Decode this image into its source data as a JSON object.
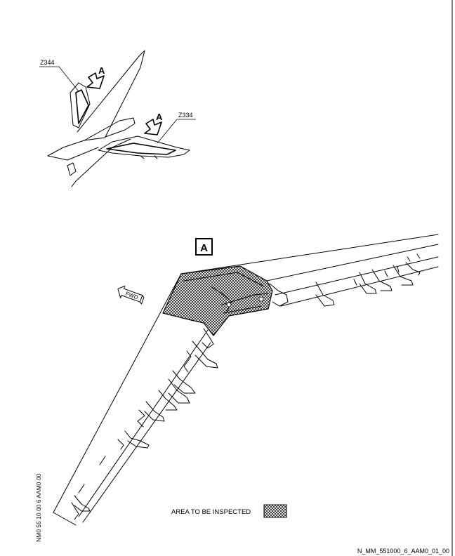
{
  "callouts": {
    "zone_upper": "Z344",
    "zone_lower": "Z334",
    "view_arrow_upper": "A",
    "view_arrow_lower": "A",
    "view_box": "A",
    "fwd": "FWD"
  },
  "legend": {
    "label": "AREA TO BE INSPECTED"
  },
  "side_ref": "NM0 55 10 00 6 AAM0 00",
  "figure_ref": "N_MM_551000_6_AAM0_01_00",
  "colors": {
    "line": "#000000",
    "background": "#ffffff"
  }
}
